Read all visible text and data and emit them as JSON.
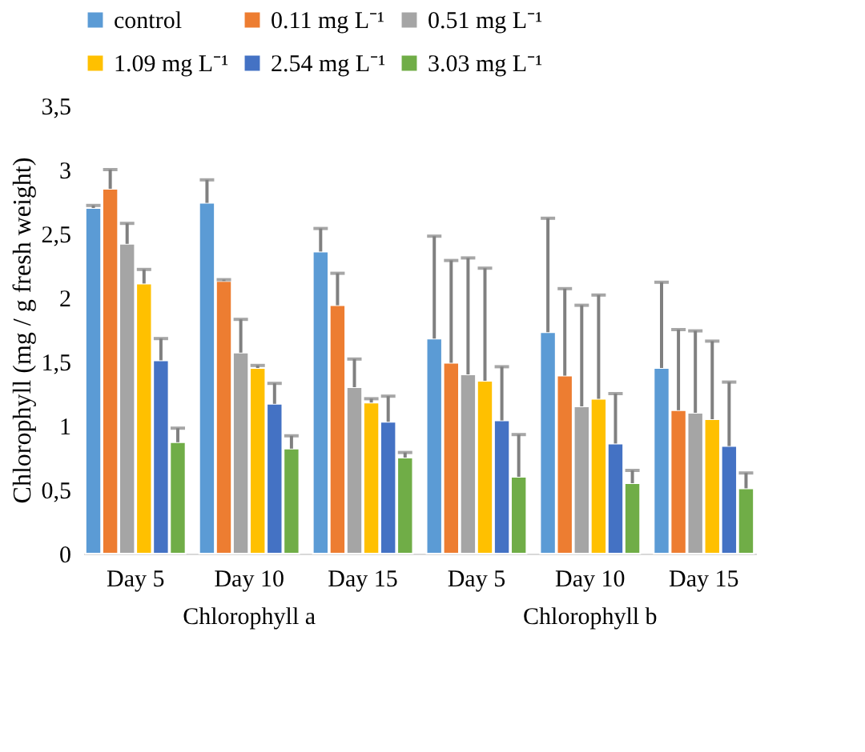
{
  "chart_data": {
    "type": "bar",
    "ylabel": "Chlorophyll (mg / g fresh weight)",
    "categories": [
      "Day 5",
      "Day 10",
      "Day 15",
      "Day 5",
      "Day 10",
      "Day 15"
    ],
    "annotations": [
      "Chlorophyll a",
      "Chlorophyll b"
    ],
    "ylim": [
      0,
      3.5
    ],
    "yticks": [
      0,
      {
        "value": 0.5,
        "label": "0,5"
      },
      1,
      {
        "value": 1.5,
        "label": "1,5"
      },
      2,
      {
        "value": 2.5,
        "label": "2,5"
      },
      3,
      {
        "value": 3.5,
        "label": "3,5"
      }
    ],
    "grid": false,
    "legend": "top",
    "series": [
      {
        "name": "control",
        "color": "#5b9bd5",
        "values": [
          2.7,
          2.74,
          2.36,
          1.68,
          1.73,
          1.45
        ],
        "errors": [
          [
            2.7,
            2.72
          ],
          [
            2.74,
            2.92
          ],
          [
            2.36,
            2.54
          ],
          [
            1.68,
            2.48
          ],
          [
            1.73,
            2.62
          ],
          [
            1.45,
            2.12
          ]
        ]
      },
      {
        "name": "0.11 mg L⁻¹",
        "color": "#ed7d31",
        "values": [
          2.85,
          2.13,
          1.94,
          1.49,
          1.39,
          1.12
        ],
        "errors": [
          [
            2.85,
            3.0
          ],
          [
            2.13,
            2.14
          ],
          [
            1.94,
            2.19
          ],
          [
            1.49,
            2.29
          ],
          [
            1.39,
            2.07
          ],
          [
            1.12,
            1.75
          ]
        ]
      },
      {
        "name": "0.51 mg L⁻¹",
        "color": "#a5a5a5",
        "values": [
          2.42,
          1.57,
          1.3,
          1.4,
          1.15,
          1.1
        ],
        "errors": [
          [
            2.42,
            2.58
          ],
          [
            1.57,
            1.83
          ],
          [
            1.3,
            1.52
          ],
          [
            1.4,
            2.31
          ],
          [
            1.15,
            1.94
          ],
          [
            1.1,
            1.74
          ]
        ]
      },
      {
        "name": "1.09 mg L⁻¹",
        "color": "#ffc000",
        "values": [
          2.11,
          1.45,
          1.18,
          1.35,
          1.21,
          1.05
        ],
        "errors": [
          [
            2.11,
            2.22
          ],
          [
            1.45,
            1.47
          ],
          [
            1.18,
            1.21
          ],
          [
            1.35,
            2.23
          ],
          [
            1.21,
            2.02
          ],
          [
            1.05,
            1.66
          ]
        ]
      },
      {
        "name": "2.54 mg L⁻¹",
        "color": "#4472c4",
        "values": [
          1.51,
          1.17,
          1.03,
          1.04,
          0.86,
          0.84
        ],
        "errors": [
          [
            1.51,
            1.68
          ],
          [
            1.17,
            1.33
          ],
          [
            1.03,
            1.23
          ],
          [
            1.04,
            1.46
          ],
          [
            0.86,
            1.25
          ],
          [
            0.84,
            1.34
          ]
        ]
      },
      {
        "name": "3.03 mg L⁻¹",
        "color": "#70ad47",
        "values": [
          0.87,
          0.82,
          0.75,
          0.6,
          0.55,
          0.51
        ],
        "errors": [
          [
            0.87,
            0.98
          ],
          [
            0.82,
            0.92
          ],
          [
            0.75,
            0.79
          ],
          [
            0.6,
            0.93
          ],
          [
            0.55,
            0.65
          ],
          [
            0.51,
            0.63
          ]
        ]
      }
    ]
  }
}
